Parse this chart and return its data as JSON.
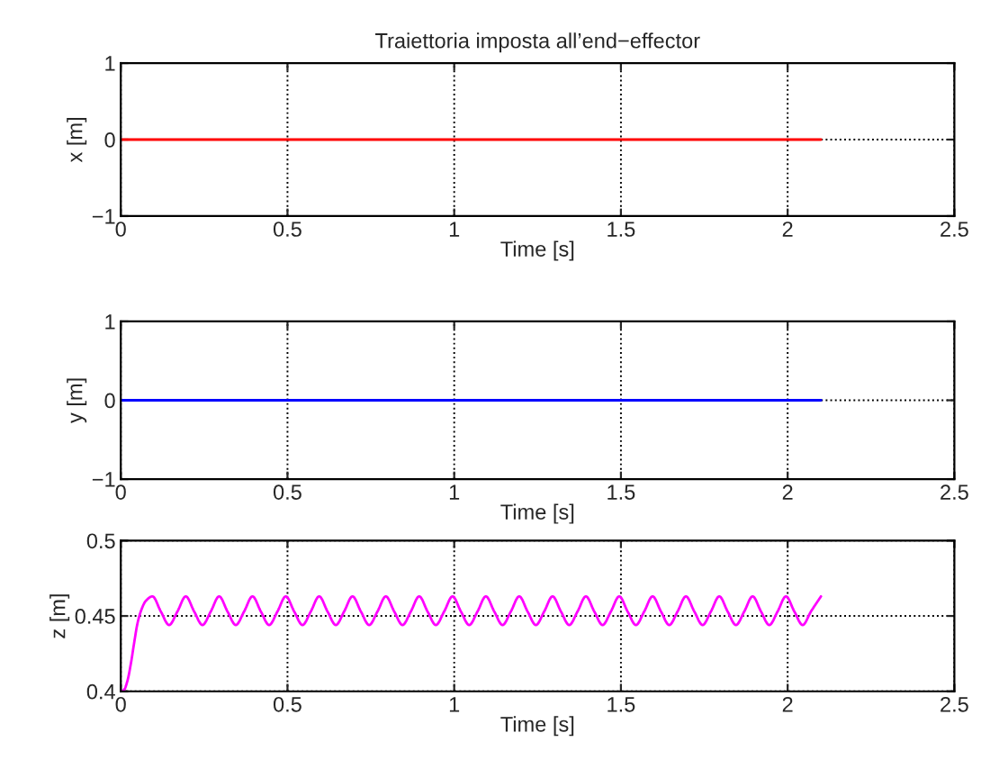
{
  "chart_data": [
    {
      "type": "line",
      "title": "Traiettoria imposta all’end−effector",
      "xlabel": "Time [s]",
      "ylabel": "x [m]",
      "xlim": [
        0,
        2.5
      ],
      "ylim": [
        -1,
        1
      ],
      "xticks": [
        0,
        0.5,
        1,
        1.5,
        2,
        2.5
      ],
      "yticks": [
        {
          "value": -1,
          "label": "−1"
        },
        0,
        1
      ],
      "grid": true,
      "series": [
        {
          "color": "#ff0000",
          "x": [
            0,
            2.1
          ],
          "values": [
            0,
            0
          ]
        }
      ]
    },
    {
      "type": "line",
      "xlabel": "Time [s]",
      "ylabel": "y [m]",
      "xlim": [
        0,
        2.5
      ],
      "ylim": [
        -1,
        1
      ],
      "xticks": [
        0,
        0.5,
        1,
        1.5,
        2,
        2.5
      ],
      "yticks": [
        {
          "value": -1,
          "label": "−1"
        },
        0,
        1
      ],
      "grid": true,
      "series": [
        {
          "color": "#0000ff",
          "x": [
            0,
            2.1
          ],
          "values": [
            0,
            0
          ]
        }
      ]
    },
    {
      "type": "line",
      "xlabel": "Time [s]",
      "ylabel": "z [m]",
      "xlim": [
        0,
        2.5
      ],
      "ylim": [
        0.4,
        0.5
      ],
      "xticks": [
        0,
        0.5,
        1,
        1.5,
        2,
        2.5
      ],
      "yticks": [
        0.4,
        0.45,
        0.5
      ],
      "grid": true,
      "series": [
        {
          "color": "#ff00ff",
          "x": [
            0,
            0.01,
            0.02,
            0.03,
            0.04,
            0.05,
            0.06,
            0.075,
            0.095,
            0.12,
            0.145,
            0.17,
            0.195,
            0.22,
            0.245,
            0.27,
            0.295,
            0.32,
            0.345,
            0.37,
            0.395,
            0.42,
            0.445,
            0.47,
            0.495,
            0.52,
            0.545,
            0.57,
            0.595,
            0.62,
            0.645,
            0.67,
            0.695,
            0.72,
            0.745,
            0.77,
            0.795,
            0.82,
            0.845,
            0.87,
            0.895,
            0.92,
            0.945,
            0.97,
            0.995,
            1.02,
            1.045,
            1.07,
            1.095,
            1.12,
            1.145,
            1.17,
            1.195,
            1.22,
            1.245,
            1.27,
            1.295,
            1.32,
            1.345,
            1.37,
            1.395,
            1.42,
            1.445,
            1.47,
            1.495,
            1.52,
            1.545,
            1.57,
            1.595,
            1.62,
            1.645,
            1.67,
            1.695,
            1.72,
            1.745,
            1.77,
            1.795,
            1.82,
            1.845,
            1.87,
            1.895,
            1.92,
            1.945,
            1.97,
            1.995,
            2.02,
            2.045,
            2.07,
            2.1
          ],
          "values": [
            0.4,
            0.401,
            0.407,
            0.418,
            0.432,
            0.445,
            0.453,
            0.46,
            0.463,
            0.453,
            0.444,
            0.453,
            0.463,
            0.453,
            0.444,
            0.453,
            0.463,
            0.453,
            0.444,
            0.453,
            0.463,
            0.453,
            0.444,
            0.453,
            0.463,
            0.453,
            0.444,
            0.453,
            0.463,
            0.453,
            0.444,
            0.453,
            0.463,
            0.453,
            0.444,
            0.453,
            0.463,
            0.453,
            0.444,
            0.453,
            0.463,
            0.453,
            0.444,
            0.453,
            0.463,
            0.453,
            0.444,
            0.453,
            0.463,
            0.453,
            0.444,
            0.453,
            0.463,
            0.453,
            0.444,
            0.453,
            0.463,
            0.453,
            0.444,
            0.453,
            0.463,
            0.453,
            0.444,
            0.453,
            0.463,
            0.453,
            0.444,
            0.453,
            0.463,
            0.453,
            0.444,
            0.453,
            0.463,
            0.453,
            0.444,
            0.453,
            0.463,
            0.453,
            0.444,
            0.453,
            0.463,
            0.453,
            0.444,
            0.453,
            0.463,
            0.453,
            0.444,
            0.453,
            0.463
          ]
        }
      ]
    }
  ]
}
